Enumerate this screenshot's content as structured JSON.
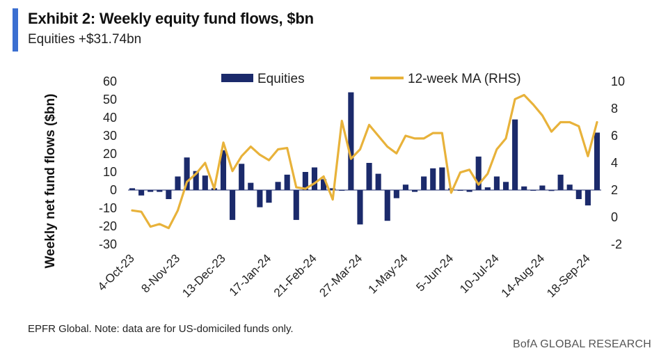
{
  "header": {
    "title": "Exhibit 2: Weekly equity fund flows, $bn",
    "subtitle": "Equities +$31.74bn"
  },
  "footer": {
    "source": "EPFR Global. Note: data are for US-domiciled funds only.",
    "brand": "BofA GLOBAL RESEARCH"
  },
  "colors": {
    "bars": "#1b2a6b",
    "line": "#e8b23a",
    "accent": "#3b6fd1"
  },
  "chart_data": {
    "type": "bar",
    "title": "Exhibit 2: Weekly equity fund flows, $bn",
    "subtitle": "Equities +$31.74bn",
    "ylabel": "Weekly net fund flows ($bn)",
    "ylabel_right": "",
    "ylim": [
      -30,
      60
    ],
    "ylim_right": [
      -2,
      10
    ],
    "yticks": [
      "60",
      "50",
      "40",
      "30",
      "20",
      "10",
      "0",
      "-10",
      "-20",
      "-30"
    ],
    "yticks_right": [
      "10",
      "8",
      "6",
      "4",
      "2",
      "0",
      "-2"
    ],
    "xticks": [
      "4-Oct-23",
      "8-Nov-23",
      "13-Dec-23",
      "17-Jan-24",
      "21-Feb-24",
      "27-Mar-24",
      "1-May-24",
      "5-Jun-24",
      "10-Jul-24",
      "14-Aug-24",
      "18-Sep-24"
    ],
    "xtick_indices": [
      0,
      5,
      10,
      15,
      20,
      25,
      30,
      35,
      40,
      45,
      50
    ],
    "legend": {
      "position": "top",
      "entries": [
        "Equities",
        "12-week MA (RHS)"
      ]
    },
    "grid": false,
    "series": [
      {
        "name": "Equities",
        "type": "bar",
        "axis": "left",
        "values": [
          1,
          -3,
          -1,
          -1,
          -5,
          7.5,
          18,
          10.5,
          8,
          1,
          22,
          -16.5,
          14.5,
          4,
          -9.5,
          -7,
          4.5,
          8.5,
          -16.5,
          10,
          12.5,
          6,
          1,
          0,
          54,
          -19,
          15,
          9,
          -17,
          -4.5,
          3,
          -1,
          7.5,
          12,
          12.5,
          1,
          0,
          -1,
          18.5,
          1.5,
          7.5,
          4.5,
          39,
          2,
          0,
          2.5,
          -0.5,
          8.5,
          3,
          -5,
          -8.5,
          31.74
        ]
      },
      {
        "name": "12-week MA (RHS)",
        "type": "line",
        "axis": "right",
        "values": [
          0.5,
          0.4,
          -0.7,
          -0.5,
          -0.8,
          0.5,
          2.6,
          3.2,
          4,
          2.1,
          5.5,
          3.4,
          4.5,
          5.2,
          4.6,
          4.2,
          5.0,
          5.1,
          2.2,
          2.1,
          2.5,
          3.0,
          1.3,
          7.1,
          4.3,
          5.0,
          6.8,
          6.0,
          5.2,
          4.7,
          6.0,
          5.8,
          5.8,
          6.2,
          6.2,
          1.8,
          3.3,
          3.5,
          2.4,
          3.2,
          5.0,
          5.8,
          8.7,
          9.0,
          8.3,
          7.5,
          6.3,
          7.0,
          7.0,
          6.7,
          4.5,
          7.0
        ]
      }
    ]
  }
}
